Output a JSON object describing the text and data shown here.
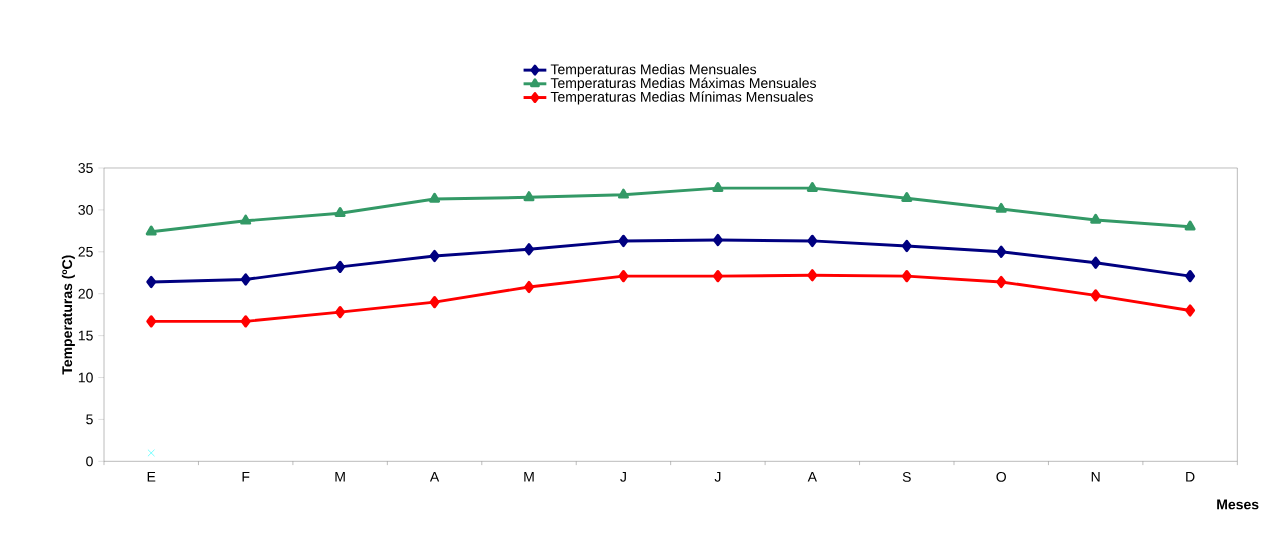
{
  "chart_data": {
    "type": "line",
    "xlabel": "Meses",
    "ylabel": "Temperaturas (ºC)",
    "categories": [
      "E",
      "F",
      "M",
      "A",
      "M",
      "J",
      "J",
      "A",
      "S",
      "O",
      "N",
      "D"
    ],
    "ylim": [
      0,
      35
    ],
    "yticks": [
      0,
      5,
      10,
      15,
      20,
      25,
      30,
      35
    ],
    "grid": false,
    "legend": "top",
    "line_style": "solid",
    "series": [
      {
        "name": "Temperaturas Medias Mensuales",
        "color": "#000080",
        "marker": "diamond",
        "values": [
          21.4,
          21.7,
          23.2,
          24.5,
          25.3,
          26.3,
          26.4,
          26.3,
          25.7,
          25.0,
          23.7,
          22.1
        ]
      },
      {
        "name": "Temperaturas Medias Máximas Mensuales",
        "color": "#339966",
        "marker": "triangle",
        "values": [
          27.4,
          28.7,
          29.6,
          31.3,
          31.5,
          31.8,
          32.6,
          32.6,
          31.4,
          30.1,
          28.8,
          28.0
        ]
      },
      {
        "name": "Temperaturas Medias Mínimas Mensuales",
        "color": "#ff0000",
        "marker": "diamond",
        "values": [
          16.7,
          16.7,
          17.8,
          19.0,
          20.8,
          22.1,
          22.1,
          22.2,
          22.1,
          21.4,
          19.8,
          18.0
        ]
      },
      {
        "type": "scatter",
        "color": "#00ffff",
        "marker": "cross",
        "values": [
          1,
          null,
          null,
          null,
          null,
          null,
          null,
          null,
          null,
          null,
          null,
          null
        ]
      }
    ]
  }
}
